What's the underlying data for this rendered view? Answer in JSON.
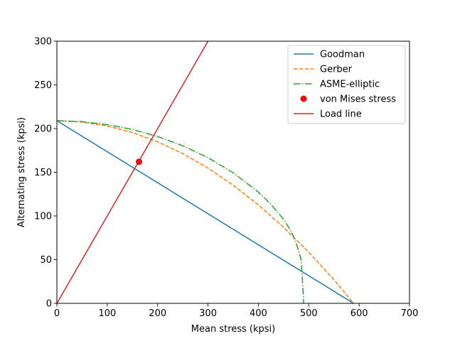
{
  "chart_data": {
    "type": "line",
    "xlabel": "Mean stress (kpsi)",
    "ylabel": "Alternating stress (kpsi)",
    "xlim": [
      0,
      700
    ],
    "ylim": [
      0,
      300
    ],
    "x_ticks": [
      0,
      100,
      200,
      300,
      400,
      500,
      600,
      700
    ],
    "y_ticks": [
      0,
      50,
      100,
      150,
      200,
      250,
      300
    ],
    "grid": false,
    "legend_position": "top-right",
    "Se": 209,
    "Sut": 589,
    "Sy": 490,
    "series": [
      {
        "name": "Goodman",
        "color": "#1f77b4",
        "style": "solid",
        "x": [
          0,
          589
        ],
        "y": [
          209,
          0
        ]
      },
      {
        "name": "Gerber",
        "color": "#ff7f0e",
        "style": "dashed",
        "x": [
          0,
          50,
          100,
          150,
          200,
          250,
          300,
          350,
          400,
          450,
          500,
          550,
          589
        ],
        "y": [
          209,
          207.5,
          203,
          195.5,
          184.9,
          171.3,
          154.8,
          135.2,
          112.6,
          87,
          58.5,
          27,
          0
        ]
      },
      {
        "name": "ASME-elliptic",
        "color": "#2ca02c",
        "style": "dashdot",
        "x": [
          0,
          50,
          100,
          150,
          200,
          250,
          300,
          350,
          400,
          425,
          450,
          465,
          475,
          485,
          490
        ],
        "y": [
          209,
          207.9,
          204.5,
          199,
          190.9,
          180.3,
          166.7,
          149.5,
          127.3,
          113.3,
          96.1,
          82.6,
          69.1,
          49.8,
          0
        ]
      },
      {
        "name": "von Mises stress",
        "color": "#ff0000",
        "style": "marker",
        "x": [
          163
        ],
        "y": [
          162
        ]
      },
      {
        "name": "Load line",
        "color": "#d62728",
        "style": "solid",
        "x": [
          0,
          300
        ],
        "y": [
          0,
          300
        ]
      }
    ]
  }
}
